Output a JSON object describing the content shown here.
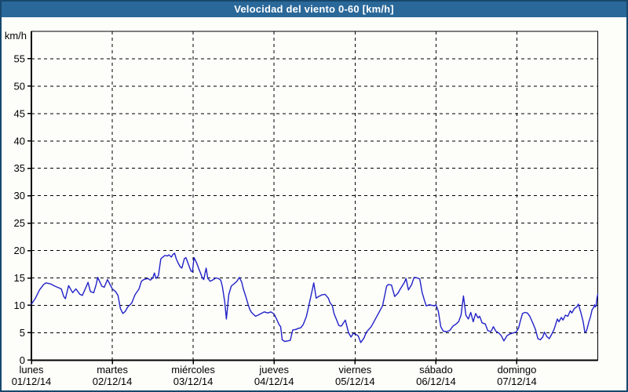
{
  "window": {
    "title": "Velocidad del viento 0-60 [km/h]"
  },
  "colors": {
    "titlebar_bg": "#2A6899",
    "window_border": "#17486C",
    "background": "#FDFDFA",
    "grid": "#000000",
    "axis": "#000000",
    "label_text": "#000000",
    "title_text": "#FFFFFF",
    "line": "#2121C8"
  },
  "chart_data": {
    "type": "line",
    "title": "Velocidad del viento 0-60 [km/h]",
    "y_unit_label": "km/h",
    "ylabel": "km/h",
    "xlabel": "",
    "ylim": [
      0,
      60
    ],
    "y_ticks": [
      0,
      5,
      10,
      15,
      20,
      25,
      30,
      35,
      40,
      45,
      50,
      55
    ],
    "grid": "dashed",
    "legend_position": "none",
    "x_days": [
      {
        "name": "lunes",
        "date": "01/12/14"
      },
      {
        "name": "martes",
        "date": "02/12/14"
      },
      {
        "name": "miércoles",
        "date": "03/12/14"
      },
      {
        "name": "jueves",
        "date": "04/12/14"
      },
      {
        "name": "viernes",
        "date": "05/12/14"
      },
      {
        "name": "sábado",
        "date": "06/12/14"
      },
      {
        "name": "domingo",
        "date": "07/12/14"
      }
    ],
    "series": [
      {
        "name": "Velocidad del viento",
        "unit": "km/h",
        "x_unit": "days_since_monday_00h",
        "points": [
          [
            0.0,
            10.2
          ],
          [
            0.05,
            11.3
          ],
          [
            0.1,
            12.8
          ],
          [
            0.15,
            13.8
          ],
          [
            0.18,
            14.1
          ],
          [
            0.24,
            13.9
          ],
          [
            0.29,
            13.5
          ],
          [
            0.37,
            13.0
          ],
          [
            0.4,
            11.6
          ],
          [
            0.42,
            11.2
          ],
          [
            0.46,
            13.6
          ],
          [
            0.49,
            12.8
          ],
          [
            0.51,
            12.3
          ],
          [
            0.55,
            13.0
          ],
          [
            0.6,
            12.0
          ],
          [
            0.63,
            11.8
          ],
          [
            0.68,
            13.5
          ],
          [
            0.7,
            14.2
          ],
          [
            0.73,
            12.5
          ],
          [
            0.77,
            12.3
          ],
          [
            0.8,
            13.8
          ],
          [
            0.82,
            15.1
          ],
          [
            0.87,
            13.5
          ],
          [
            0.9,
            13.3
          ],
          [
            0.94,
            14.7
          ],
          [
            1.0,
            13.0
          ],
          [
            1.04,
            12.5
          ],
          [
            1.07,
            11.8
          ],
          [
            1.1,
            9.4
          ],
          [
            1.13,
            8.5
          ],
          [
            1.16,
            8.9
          ],
          [
            1.19,
            9.7
          ],
          [
            1.24,
            10.4
          ],
          [
            1.28,
            11.9
          ],
          [
            1.33,
            13.0
          ],
          [
            1.36,
            14.4
          ],
          [
            1.39,
            14.7
          ],
          [
            1.44,
            14.9
          ],
          [
            1.47,
            14.6
          ],
          [
            1.5,
            15.0
          ],
          [
            1.52,
            15.9
          ],
          [
            1.54,
            14.9
          ],
          [
            1.57,
            15.4
          ],
          [
            1.6,
            18.5
          ],
          [
            1.65,
            19.1
          ],
          [
            1.68,
            19.0
          ],
          [
            1.7,
            19.2
          ],
          [
            1.73,
            18.8
          ],
          [
            1.75,
            19.3
          ],
          [
            1.77,
            19.5
          ],
          [
            1.79,
            18.5
          ],
          [
            1.81,
            17.8
          ],
          [
            1.84,
            17.0
          ],
          [
            1.86,
            16.8
          ],
          [
            1.89,
            18.5
          ],
          [
            1.91,
            18.7
          ],
          [
            1.94,
            17.5
          ],
          [
            1.97,
            16.3
          ],
          [
            1.99,
            16.1
          ],
          [
            2.01,
            18.7
          ],
          [
            2.04,
            17.8
          ],
          [
            2.07,
            16.6
          ],
          [
            2.09,
            15.9
          ],
          [
            2.11,
            15.1
          ],
          [
            2.13,
            14.7
          ],
          [
            2.16,
            16.8
          ],
          [
            2.18,
            14.9
          ],
          [
            2.21,
            14.4
          ],
          [
            2.25,
            14.7
          ],
          [
            2.28,
            15.0
          ],
          [
            2.31,
            14.9
          ],
          [
            2.34,
            14.6
          ],
          [
            2.36,
            13.5
          ],
          [
            2.39,
            10.6
          ],
          [
            2.41,
            7.5
          ],
          [
            2.43,
            10.6
          ],
          [
            2.44,
            12.0
          ],
          [
            2.47,
            13.5
          ],
          [
            2.51,
            14.0
          ],
          [
            2.54,
            14.4
          ],
          [
            2.57,
            15.1
          ],
          [
            2.6,
            14.2
          ],
          [
            2.62,
            13.0
          ],
          [
            2.65,
            11.6
          ],
          [
            2.68,
            10.1
          ],
          [
            2.7,
            9.2
          ],
          [
            2.72,
            8.7
          ],
          [
            2.77,
            8.0
          ],
          [
            2.8,
            8.2
          ],
          [
            2.84,
            8.5
          ],
          [
            2.88,
            8.8
          ],
          [
            2.92,
            8.6
          ],
          [
            2.96,
            8.8
          ],
          [
            3.0,
            8.4
          ],
          [
            3.03,
            7.5
          ],
          [
            3.06,
            6.5
          ],
          [
            3.08,
            6.1
          ],
          [
            3.1,
            3.7
          ],
          [
            3.13,
            3.4
          ],
          [
            3.17,
            3.5
          ],
          [
            3.2,
            3.6
          ],
          [
            3.23,
            5.5
          ],
          [
            3.27,
            5.6
          ],
          [
            3.3,
            5.8
          ],
          [
            3.33,
            5.9
          ],
          [
            3.36,
            6.5
          ],
          [
            3.4,
            8.0
          ],
          [
            3.43,
            10.0
          ],
          [
            3.46,
            12.0
          ],
          [
            3.49,
            14.1
          ],
          [
            3.52,
            11.3
          ],
          [
            3.55,
            11.6
          ],
          [
            3.59,
            11.9
          ],
          [
            3.63,
            12.0
          ],
          [
            3.67,
            11.3
          ],
          [
            3.69,
            10.5
          ],
          [
            3.72,
            9.9
          ],
          [
            3.74,
            8.5
          ],
          [
            3.77,
            7.4
          ],
          [
            3.8,
            6.3
          ],
          [
            3.83,
            6.2
          ],
          [
            3.88,
            7.3
          ],
          [
            3.92,
            5.0
          ],
          [
            3.95,
            4.2
          ],
          [
            3.98,
            4.9
          ],
          [
            4.01,
            4.7
          ],
          [
            4.04,
            4.4
          ],
          [
            4.07,
            3.2
          ],
          [
            4.11,
            4.0
          ],
          [
            4.14,
            5.1
          ],
          [
            4.2,
            6.1
          ],
          [
            4.27,
            8.0
          ],
          [
            4.34,
            9.9
          ],
          [
            4.37,
            12.0
          ],
          [
            4.39,
            13.5
          ],
          [
            4.41,
            13.8
          ],
          [
            4.45,
            13.7
          ],
          [
            4.49,
            11.6
          ],
          [
            4.53,
            12.2
          ],
          [
            4.56,
            13.0
          ],
          [
            4.61,
            14.2
          ],
          [
            4.63,
            14.9
          ],
          [
            4.66,
            12.8
          ],
          [
            4.7,
            13.8
          ],
          [
            4.73,
            15.1
          ],
          [
            4.77,
            15.0
          ],
          [
            4.8,
            14.8
          ],
          [
            4.83,
            12.3
          ],
          [
            4.86,
            10.8
          ],
          [
            4.88,
            9.9
          ],
          [
            4.92,
            10.1
          ],
          [
            4.95,
            10.0
          ],
          [
            4.98,
            9.9
          ],
          [
            5.0,
            10.1
          ],
          [
            5.03,
            8.9
          ],
          [
            5.06,
            6.1
          ],
          [
            5.09,
            5.3
          ],
          [
            5.13,
            5.2
          ],
          [
            5.17,
            5.4
          ],
          [
            5.21,
            6.2
          ],
          [
            5.25,
            6.6
          ],
          [
            5.28,
            7.0
          ],
          [
            5.31,
            8.2
          ],
          [
            5.34,
            11.7
          ],
          [
            5.37,
            8.2
          ],
          [
            5.4,
            7.5
          ],
          [
            5.43,
            8.7
          ],
          [
            5.46,
            7.0
          ],
          [
            5.49,
            8.5
          ],
          [
            5.52,
            7.7
          ],
          [
            5.54,
            8.0
          ],
          [
            5.57,
            6.8
          ],
          [
            5.61,
            6.6
          ],
          [
            5.64,
            5.4
          ],
          [
            5.68,
            5.2
          ],
          [
            5.71,
            6.1
          ],
          [
            5.74,
            5.3
          ],
          [
            5.78,
            4.9
          ],
          [
            5.81,
            4.4
          ],
          [
            5.84,
            3.5
          ],
          [
            5.88,
            4.5
          ],
          [
            5.92,
            4.8
          ],
          [
            5.96,
            5.0
          ],
          [
            5.99,
            5.1
          ],
          [
            6.02,
            5.8
          ],
          [
            6.04,
            7.0
          ],
          [
            6.07,
            8.5
          ],
          [
            6.1,
            8.7
          ],
          [
            6.13,
            8.6
          ],
          [
            6.16,
            8.0
          ],
          [
            6.19,
            7.0
          ],
          [
            6.23,
            5.6
          ],
          [
            6.26,
            3.9
          ],
          [
            6.29,
            3.7
          ],
          [
            6.32,
            4.2
          ],
          [
            6.34,
            5.1
          ],
          [
            6.37,
            4.3
          ],
          [
            6.4,
            3.9
          ],
          [
            6.43,
            4.7
          ],
          [
            6.46,
            5.6
          ],
          [
            6.5,
            7.5
          ],
          [
            6.52,
            7.0
          ],
          [
            6.55,
            7.8
          ],
          [
            6.57,
            7.3
          ],
          [
            6.6,
            8.2
          ],
          [
            6.63,
            8.0
          ],
          [
            6.66,
            9.0
          ],
          [
            6.68,
            8.6
          ],
          [
            6.71,
            9.4
          ],
          [
            6.74,
            9.7
          ],
          [
            6.76,
            10.2
          ],
          [
            6.79,
            8.7
          ],
          [
            6.82,
            7.0
          ],
          [
            6.84,
            5.1
          ],
          [
            6.86,
            5.3
          ],
          [
            6.89,
            7.0
          ],
          [
            6.91,
            7.9
          ],
          [
            6.93,
            9.2
          ],
          [
            6.95,
            9.6
          ],
          [
            6.96,
            10.1
          ],
          [
            6.97,
            9.7
          ],
          [
            6.98,
            9.9
          ],
          [
            6.99,
            11.3
          ],
          [
            7.0,
            12.0
          ]
        ]
      }
    ]
  }
}
